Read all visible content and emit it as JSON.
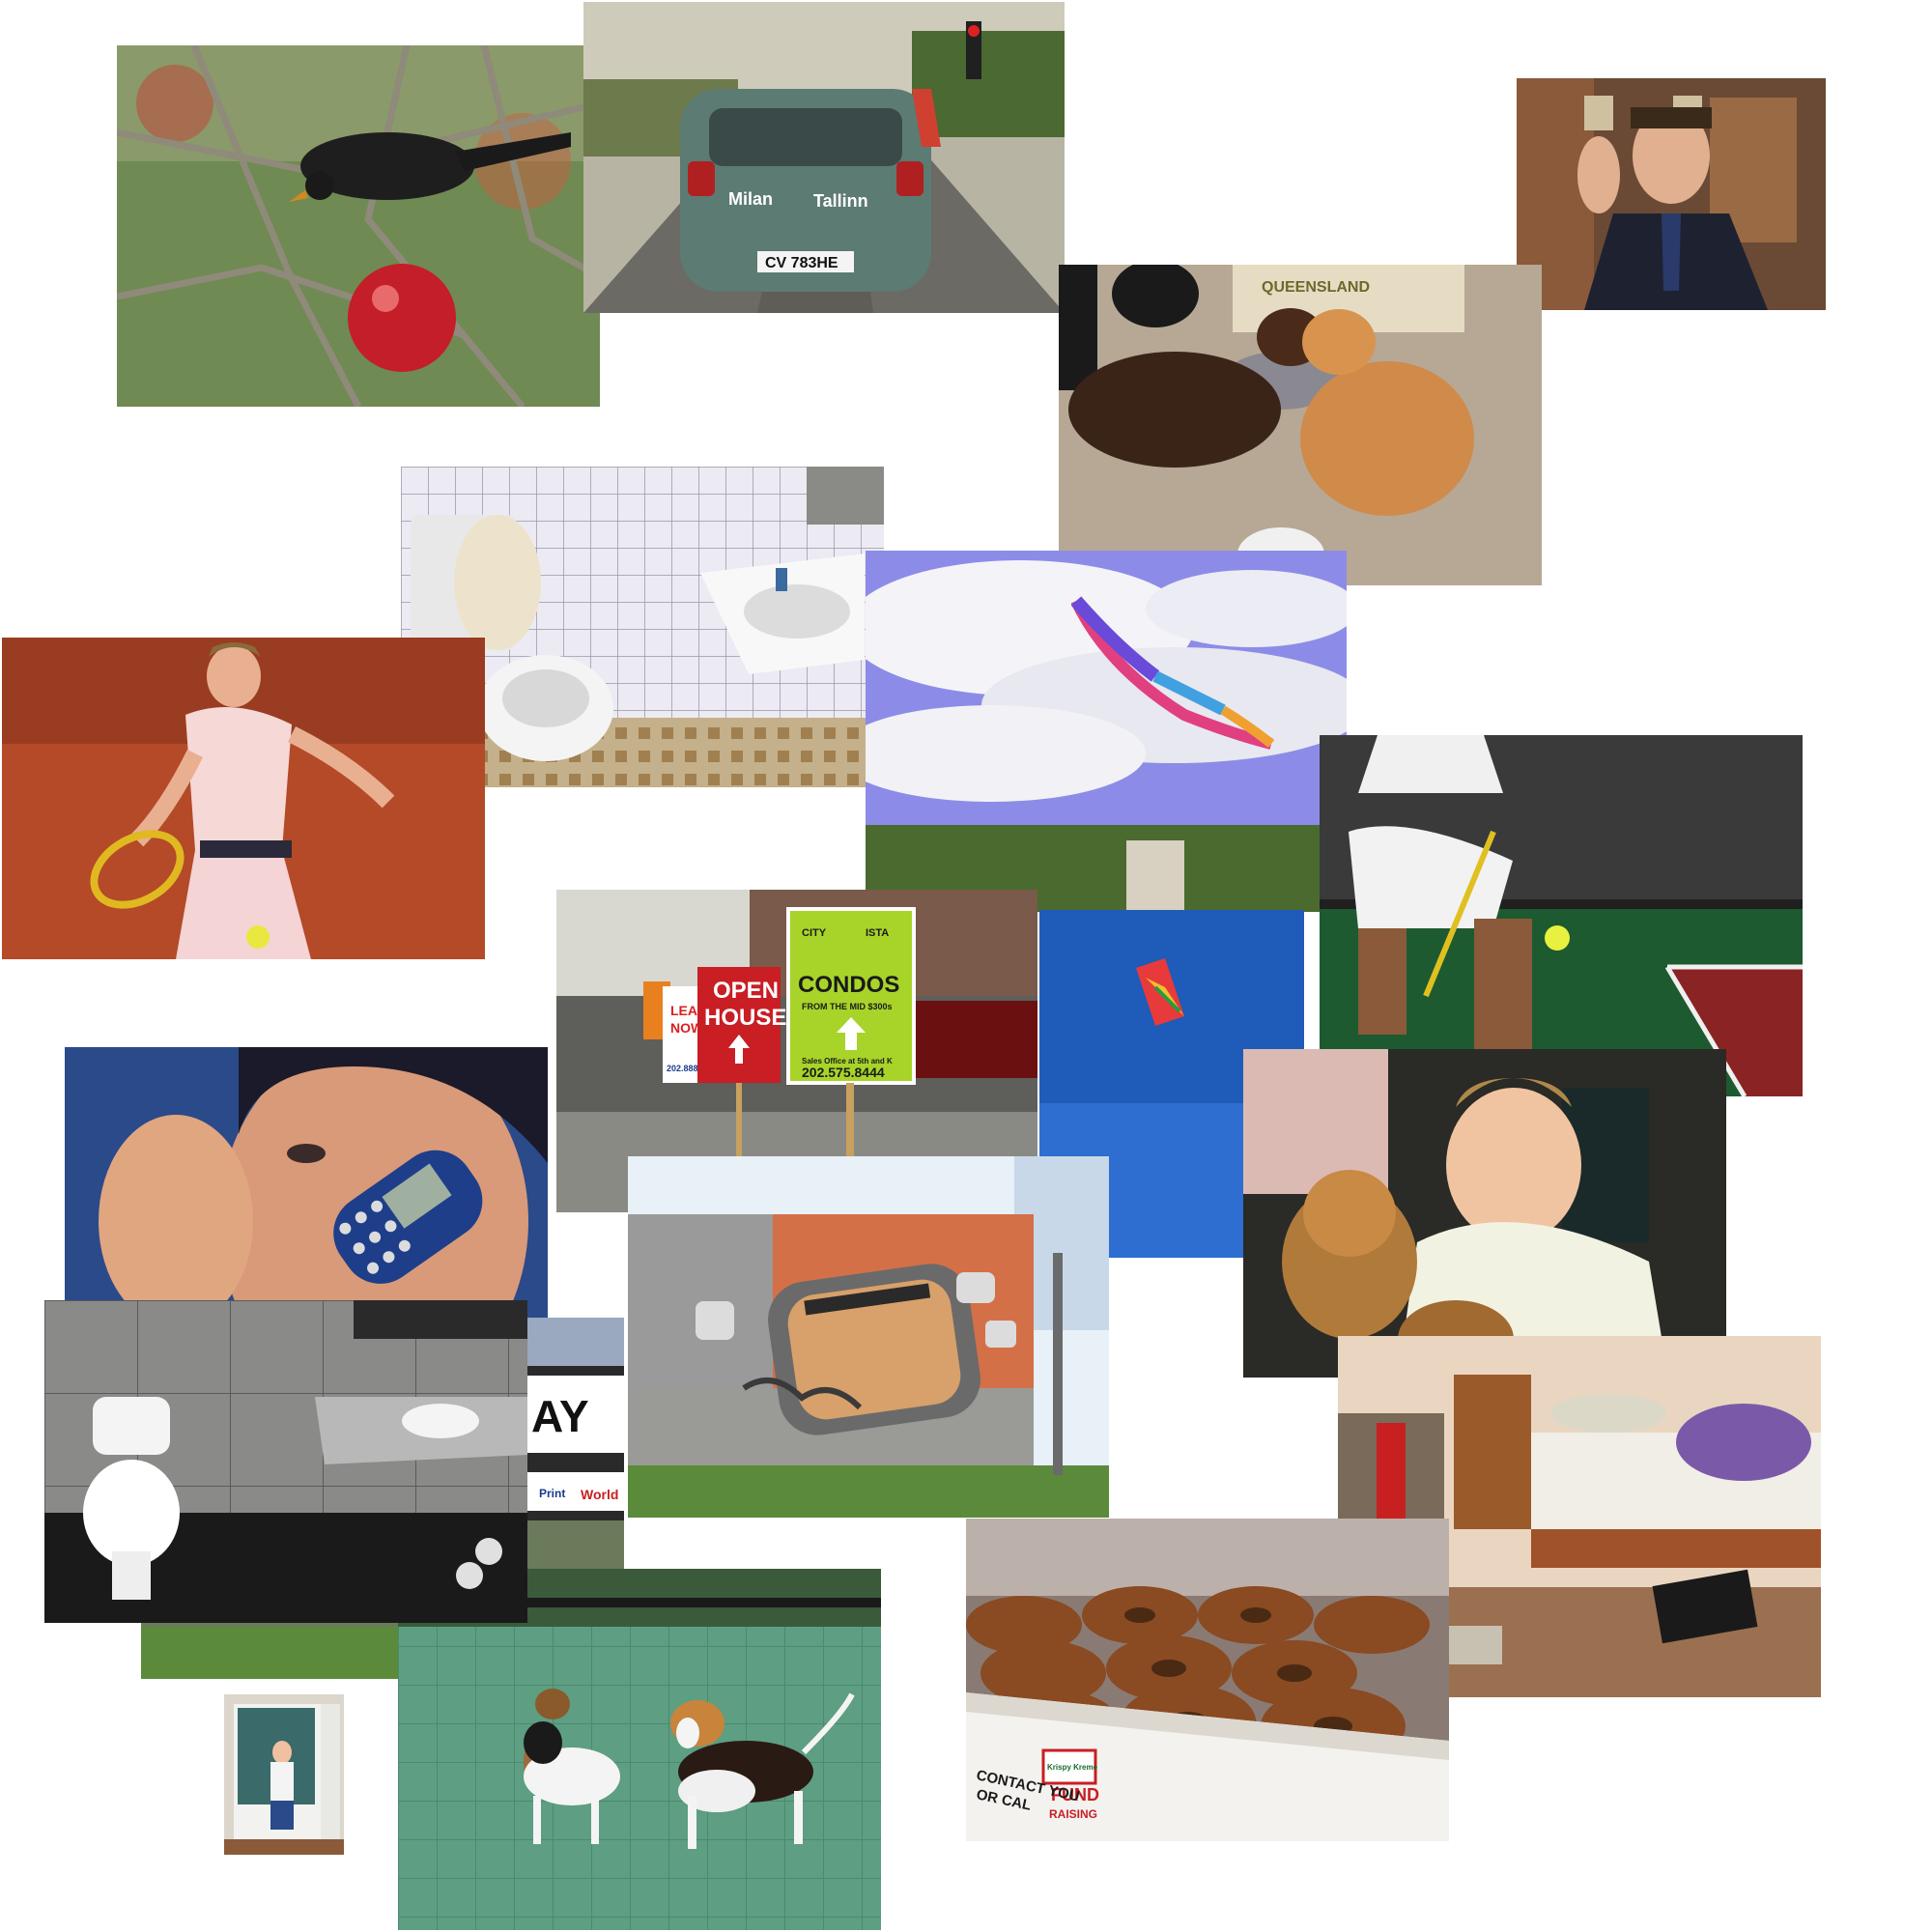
{
  "collage": {
    "car_plate": "CV 783HE",
    "car_brand": "Milan",
    "car_brand_2": "Tallinn",
    "box_text": "QUEENSLAND",
    "sign_open_1": "OPEN",
    "sign_open_2": "HOUSE",
    "sign_lease_1": "LEAS",
    "sign_lease_2": "NOW",
    "sign_lease_phone": "202.888",
    "condo_brand_left": "CITY",
    "condo_brand_right": "ISTA",
    "condo_title": "CONDOS",
    "condo_sub": "FROM THE MID $300s",
    "condo_office": "Sales Office at 5th and K",
    "condo_phone": "202.575.8444",
    "oneway_text": "AY",
    "store_text_1": "Print",
    "store_text_2": "World",
    "donut_brand_1": "Krispy Kreme",
    "donut_fund_1": "FUND",
    "donut_fund_2": "RAISING",
    "donut_contact_1": "CONTACT YOU",
    "donut_contact_2": "OR CAL",
    "colors": {
      "grass": "#5a8a3a",
      "clay": "#b94a2a",
      "sky": "#2b63c8",
      "condo_green": "#a8d42a",
      "open_red": "#c81e24",
      "donut": "#8a4a22"
    }
  }
}
